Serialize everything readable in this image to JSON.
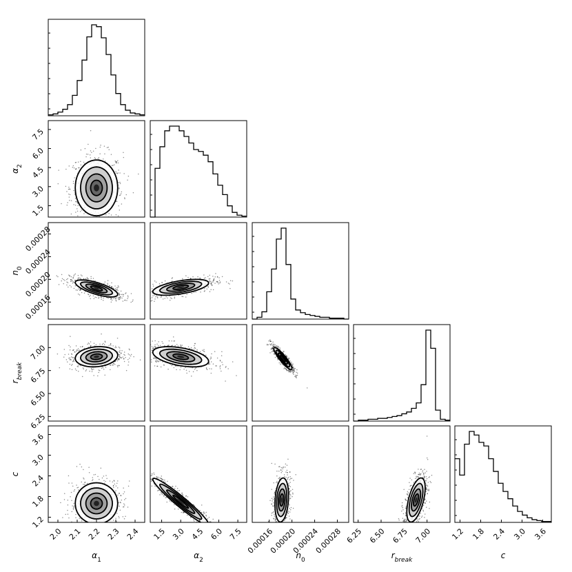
{
  "chart_data": {
    "type": "corner",
    "parameters": [
      {
        "key": "alpha1",
        "label": "α",
        "sub": "1",
        "range": [
          1.95,
          2.45
        ],
        "ticks": [
          "2.0",
          "2.1",
          "2.2",
          "2.3",
          "2.4"
        ],
        "tick_values": [
          2.0,
          2.1,
          2.2,
          2.3,
          2.4
        ],
        "hist": [
          1,
          2,
          4,
          7,
          12,
          22,
          38,
          60,
          85,
          98,
          96,
          84,
          66,
          44,
          24,
          12,
          6,
          3,
          2,
          1
        ]
      },
      {
        "key": "alpha2",
        "label": "α",
        "sub": "2",
        "range": [
          0.6,
          8.2
        ],
        "ticks": [
          "1.5",
          "3.0",
          "4.5",
          "6.0",
          "7.5"
        ],
        "tick_values": [
          1.5,
          3.0,
          4.5,
          6.0,
          7.5
        ],
        "hist": [
          0,
          52,
          75,
          92,
          97,
          97,
          92,
          86,
          79,
          72,
          70,
          66,
          59,
          46,
          34,
          24,
          12,
          5,
          2,
          1
        ]
      },
      {
        "key": "n0",
        "label": "n",
        "sub": "0",
        "range": [
          0.00013,
          0.0003
        ],
        "ticks": [
          "0.00016",
          "0.00020",
          "0.00024",
          "0.00028"
        ],
        "tick_values": [
          0.00016,
          0.0002,
          0.00024,
          0.00028
        ],
        "hist": [
          0,
          2,
          8,
          30,
          55,
          88,
          100,
          60,
          22,
          10,
          7,
          5,
          4,
          3,
          2,
          2,
          1,
          1,
          1,
          0
        ]
      },
      {
        "key": "rbreak",
        "label": "r",
        "sub": "break",
        "range": [
          6.2,
          7.25
        ],
        "ticks": [
          "6.25",
          "6.50",
          "6.75",
          "7.00"
        ],
        "tick_values": [
          6.25,
          6.5,
          6.75,
          7.0
        ],
        "hist": [
          0,
          1,
          1,
          2,
          2,
          3,
          3,
          4,
          5,
          6,
          8,
          10,
          14,
          20,
          40,
          100,
          80,
          12,
          2,
          1
        ]
      },
      {
        "key": "c",
        "label": "c",
        "sub": "",
        "range": [
          1.05,
          3.85
        ],
        "ticks": [
          "1.2",
          "1.8",
          "2.4",
          "3.0",
          "3.6"
        ],
        "tick_values": [
          1.2,
          1.8,
          2.4,
          3.0,
          3.6
        ],
        "hist": [
          70,
          52,
          86,
          100,
          96,
          88,
          84,
          70,
          56,
          43,
          34,
          26,
          18,
          12,
          8,
          5,
          3,
          2,
          1,
          1
        ]
      }
    ],
    "pairs": [
      {
        "x": "alpha1",
        "y": "alpha2",
        "center": [
          2.2,
          2.9
        ],
        "sd": [
          0.055,
          1.1
        ],
        "rho": 0.0
      },
      {
        "x": "alpha1",
        "y": "n0",
        "center": [
          2.2,
          0.000184
        ],
        "sd": [
          0.055,
          7.5e-06
        ],
        "rho": -0.7
      },
      {
        "x": "alpha2",
        "y": "n0",
        "center": [
          3.0,
          0.000186
        ],
        "sd": [
          1.1,
          7e-06
        ],
        "rho": 0.55
      },
      {
        "x": "alpha1",
        "y": "rbreak",
        "center": [
          2.2,
          6.9
        ],
        "sd": [
          0.055,
          0.055
        ],
        "rho": 0.15
      },
      {
        "x": "alpha2",
        "y": "rbreak",
        "center": [
          3.0,
          6.9
        ],
        "sd": [
          1.1,
          0.055
        ],
        "rho": -0.45
      },
      {
        "x": "n0",
        "y": "rbreak",
        "center": [
          0.000184,
          6.88
        ],
        "sd": [
          8e-06,
          0.06
        ],
        "rho": -0.9
      },
      {
        "x": "alpha1",
        "y": "c",
        "center": [
          2.2,
          1.6
        ],
        "sd": [
          0.055,
          0.3
        ],
        "rho": 0.0
      },
      {
        "x": "alpha2",
        "y": "c",
        "center": [
          3.0,
          1.65
        ],
        "sd": [
          1.1,
          0.34
        ],
        "rho": -0.96
      },
      {
        "x": "n0",
        "y": "c",
        "center": [
          0.000182,
          1.7
        ],
        "sd": [
          6e-06,
          0.32
        ],
        "rho": 0.2
      },
      {
        "x": "rbreak",
        "y": "c",
        "center": [
          6.88,
          1.7
        ],
        "sd": [
          0.05,
          0.32
        ],
        "rho": 0.55
      }
    ]
  }
}
